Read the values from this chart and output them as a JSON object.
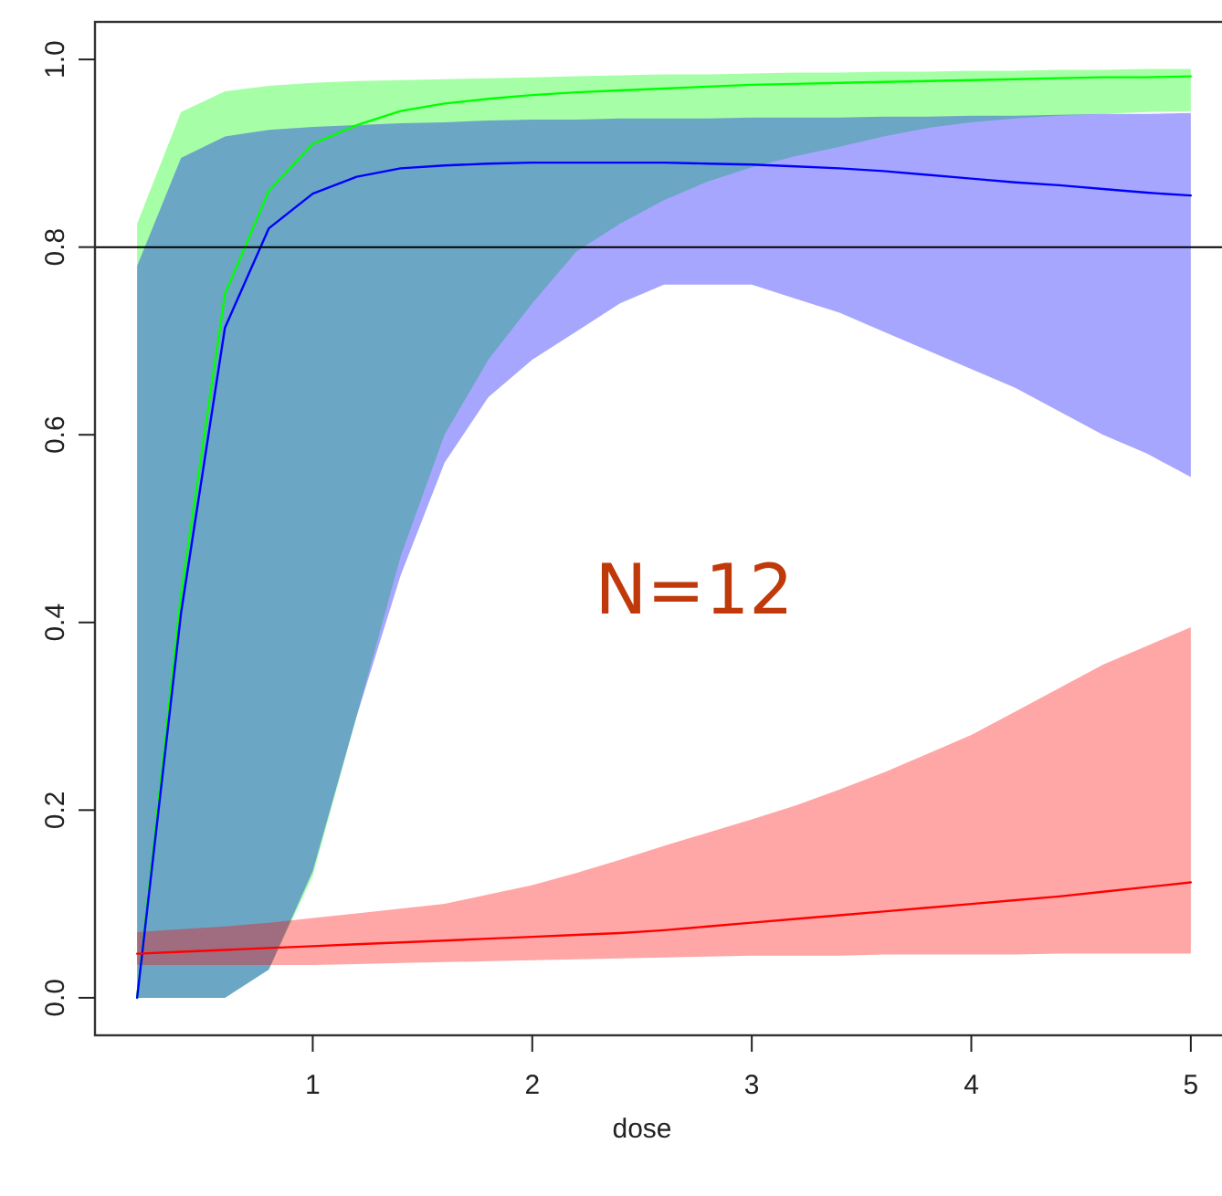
{
  "chart_data": {
    "type": "line",
    "xlabel": "dose",
    "x": [
      0.2,
      0.4,
      0.6,
      0.8,
      1.0,
      1.2,
      1.4,
      1.6,
      1.8,
      2.0,
      2.2,
      2.4,
      2.6,
      2.8,
      3.0,
      3.2,
      3.4,
      3.6,
      3.8,
      4.0,
      4.2,
      4.4,
      4.6,
      4.8,
      5.0
    ],
    "series": [
      {
        "color": "#00ff00",
        "values": [
          0,
          0.43,
          0.75,
          0.86,
          0.91,
          0.93,
          0.945,
          0.953,
          0.958,
          0.962,
          0.965,
          0.967,
          0.969,
          0.971,
          0.973,
          0.974,
          0.975,
          0.976,
          0.977,
          0.978,
          0.979,
          0.98,
          0.981,
          0.981,
          0.982
        ],
        "lower": [
          0,
          0,
          0,
          0.03,
          0.13,
          0.3,
          0.47,
          0.6,
          0.68,
          0.74,
          0.795,
          0.825,
          0.85,
          0.87,
          0.885,
          0.897,
          0.907,
          0.918,
          0.927,
          0.933,
          0.937,
          0.94,
          0.942,
          0.944,
          0.945
        ],
        "upper": [
          0.825,
          0.944,
          0.966,
          0.972,
          0.975,
          0.977,
          0.978,
          0.979,
          0.98,
          0.981,
          0.982,
          0.983,
          0.984,
          0.984,
          0.985,
          0.986,
          0.986,
          0.987,
          0.987,
          0.988,
          0.988,
          0.989,
          0.989,
          0.99,
          0.99
        ]
      },
      {
        "color": "#0000ff",
        "values": [
          0,
          0.41,
          0.714,
          0.82,
          0.857,
          0.875,
          0.884,
          0.887,
          0.889,
          0.89,
          0.89,
          0.89,
          0.89,
          0.889,
          0.888,
          0.886,
          0.884,
          0.881,
          0.877,
          0.873,
          0.869,
          0.866,
          0.862,
          0.858,
          0.855
        ],
        "lower": [
          0,
          0,
          0,
          0.03,
          0.135,
          0.3,
          0.45,
          0.57,
          0.64,
          0.68,
          0.71,
          0.74,
          0.76,
          0.76,
          0.76,
          0.745,
          0.73,
          0.71,
          0.69,
          0.67,
          0.65,
          0.625,
          0.6,
          0.58,
          0.555
        ],
        "upper": [
          0.78,
          0.895,
          0.918,
          0.925,
          0.928,
          0.93,
          0.932,
          0.933,
          0.935,
          0.936,
          0.936,
          0.937,
          0.937,
          0.937,
          0.938,
          0.938,
          0.938,
          0.939,
          0.939,
          0.94,
          0.94,
          0.941,
          0.942,
          0.942,
          0.943
        ]
      },
      {
        "color": "#ff0000",
        "values": [
          0.047,
          0.049,
          0.051,
          0.053,
          0.055,
          0.057,
          0.059,
          0.061,
          0.063,
          0.065,
          0.067,
          0.069,
          0.072,
          0.076,
          0.08,
          0.084,
          0.088,
          0.092,
          0.096,
          0.1,
          0.104,
          0.108,
          0.113,
          0.118,
          0.123
        ],
        "lower": [
          0.035,
          0.035,
          0.035,
          0.035,
          0.035,
          0.036,
          0.037,
          0.038,
          0.039,
          0.04,
          0.041,
          0.042,
          0.043,
          0.044,
          0.045,
          0.045,
          0.045,
          0.046,
          0.046,
          0.046,
          0.046,
          0.047,
          0.047,
          0.047,
          0.047
        ],
        "upper": [
          0.07,
          0.073,
          0.076,
          0.08,
          0.085,
          0.09,
          0.095,
          0.1,
          0.11,
          0.12,
          0.133,
          0.147,
          0.162,
          0.176,
          0.19,
          0.205,
          0.222,
          0.24,
          0.26,
          0.28,
          0.305,
          0.33,
          0.355,
          0.375,
          0.395
        ]
      }
    ],
    "xlim": [
      0.008,
      5.192
    ],
    "ylim": [
      -0.04,
      1.04
    ],
    "xticks": [
      1,
      2,
      3,
      4,
      5
    ],
    "yticks": [
      {
        "value": 0,
        "label": "0.0"
      },
      {
        "value": 0.2,
        "label": "0.2"
      },
      {
        "value": 0.4,
        "label": "0.4"
      },
      {
        "value": 0.6,
        "label": "0.6"
      },
      {
        "value": 0.8,
        "label": "0.8"
      },
      {
        "value": 1,
        "label": "1.0"
      }
    ],
    "ref_lines": [
      {
        "axis": "y",
        "value": 0.8,
        "color": "#000000"
      }
    ],
    "annotations": [
      "N=12"
    ]
  }
}
